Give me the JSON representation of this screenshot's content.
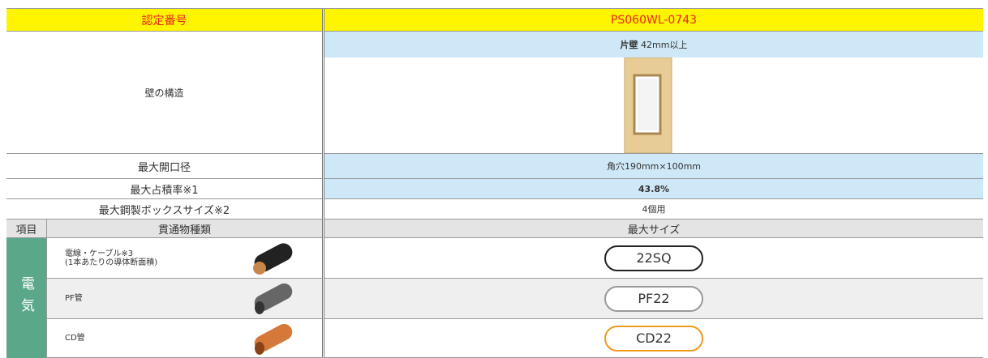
{
  "header": {
    "label": "認定番号",
    "value": "PS060WL-0743"
  },
  "wall": {
    "label": "壁の構造",
    "type": "片壁",
    "thickness": "42mm以上"
  },
  "specs": [
    {
      "label": "最大開口径",
      "value": "角穴190mm×100mm"
    },
    {
      "label": "最大占積率※1",
      "value": "43.8%"
    },
    {
      "label": "最大鋼製ボックスサイズ※2",
      "value": "4個用"
    }
  ],
  "columns": [
    "項目",
    "貫通物種類",
    "最大サイズ"
  ],
  "category": "電気",
  "items": [
    {
      "name": "電線・ケーブル※3",
      "note": "(1本あたりの導体断面積)",
      "size": "22SQ"
    },
    {
      "name": "PF管",
      "size": "PF22"
    },
    {
      "name": "CD管",
      "size": "CD22"
    }
  ]
}
